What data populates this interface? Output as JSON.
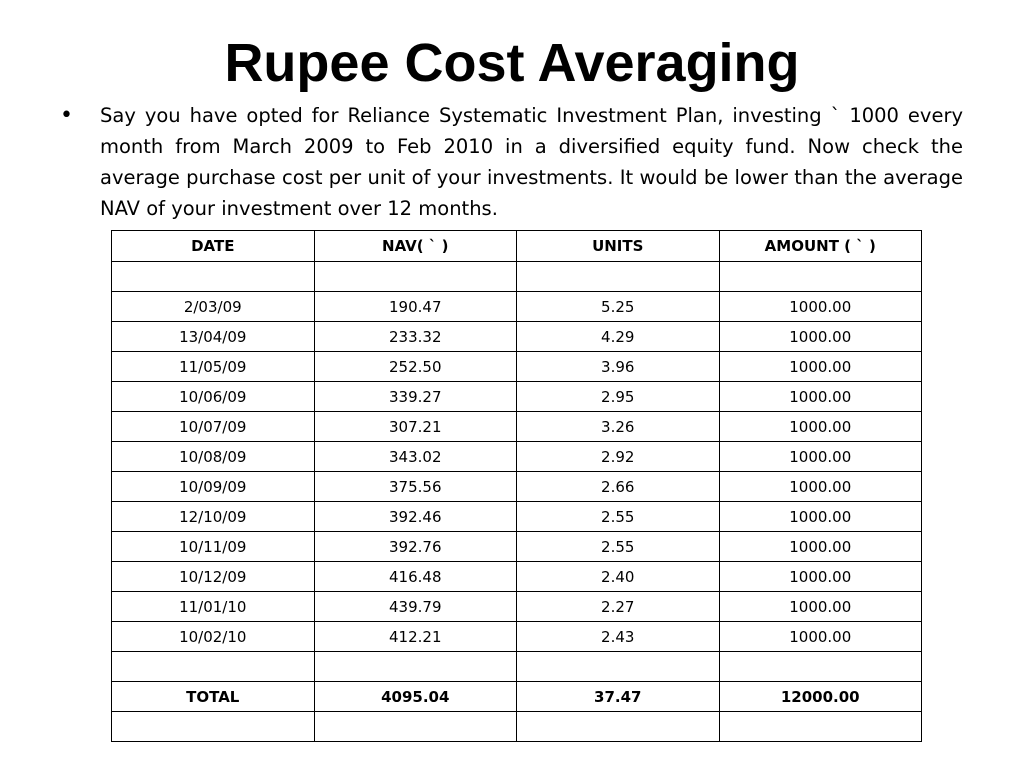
{
  "slide": {
    "title": "Rupee Cost Averaging",
    "bullet": "Say you have opted for Reliance Systematic Investment Plan, investing ` 1000 every month from March 2009 to Feb 2010 in a diversified equity fund. Now check the average purchase cost per unit of your investments. It would be lower than the average NAV of your investment over 12 months."
  },
  "table": {
    "headers": {
      "date": "DATE",
      "nav": "NAV( ` )",
      "units": "UNITS",
      "amount": "AMOUNT ( ` )"
    },
    "rows": [
      {
        "date": "2/03/09",
        "nav": "190.47",
        "units": "5.25",
        "amount": "1000.00"
      },
      {
        "date": "13/04/09",
        "nav": "233.32",
        "units": "4.29",
        "amount": "1000.00"
      },
      {
        "date": "11/05/09",
        "nav": "252.50",
        "units": "3.96",
        "amount": "1000.00"
      },
      {
        "date": "10/06/09",
        "nav": "339.27",
        "units": "2.95",
        "amount": "1000.00"
      },
      {
        "date": "10/07/09",
        "nav": "307.21",
        "units": "3.26",
        "amount": "1000.00"
      },
      {
        "date": "10/08/09",
        "nav": "343.02",
        "units": "2.92",
        "amount": "1000.00"
      },
      {
        "date": "10/09/09",
        "nav": "375.56",
        "units": "2.66",
        "amount": "1000.00"
      },
      {
        "date": "12/10/09",
        "nav": "392.46",
        "units": "2.55",
        "amount": "1000.00"
      },
      {
        "date": "10/11/09",
        "nav": "392.76",
        "units": "2.55",
        "amount": "1000.00"
      },
      {
        "date": "10/12/09",
        "nav": "416.48",
        "units": "2.40",
        "amount": "1000.00"
      },
      {
        "date": "11/01/10",
        "nav": "439.79",
        "units": "2.27",
        "amount": "1000.00"
      },
      {
        "date": "10/02/10",
        "nav": "412.21",
        "units": "2.43",
        "amount": "1000.00"
      }
    ],
    "total": {
      "label": "TOTAL",
      "nav": "4095.04",
      "units": "37.47",
      "amount": "12000.00"
    }
  }
}
